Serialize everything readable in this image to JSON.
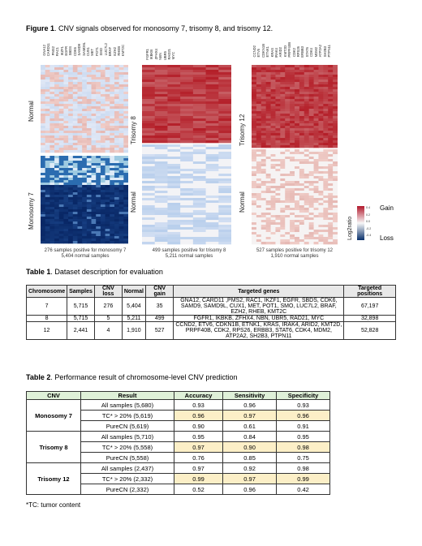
{
  "figure": {
    "label": "Figure 1",
    "title": ". CNV signals observed for monosomy 7, trisomy 8, and trisomy 12.",
    "panels": [
      {
        "genes": [
          "GNA12",
          "CARD11",
          "PMS2",
          "RAC1",
          "IKZF1",
          "EGFR",
          "SBDS",
          "CDK6",
          "SAMD9",
          "SAMD9L",
          "CUX1",
          "MET",
          "POT1",
          "SMO",
          "LUC7L2",
          "BRAF",
          "EZH2",
          "RHEB",
          "KMT2C"
        ],
        "top_label": "Normal",
        "bottom_label": "Monosomy 7",
        "note_line1": "276 samples positive for monosomy 7",
        "note_line2": "5,404 normal samples"
      },
      {
        "genes": [
          "FGFR1",
          "IKBKB",
          "ZFHX4",
          "NBN",
          "UBR5",
          "RAD21",
          "MYC"
        ],
        "top_label": "Trisomy 8",
        "bottom_label": "Normal",
        "note_line1": "499 samples positive for trisomy 8",
        "note_line2": "5,211 normal samples"
      },
      {
        "genes": [
          "CCND2",
          "ETV6",
          "CDKN1B",
          "ETNK1",
          "KRAS",
          "IRAK4",
          "ARID2",
          "KMT2D",
          "PRPF40B",
          "CDK2",
          "RPS26",
          "ERBB3",
          "STAT6",
          "CDK4",
          "MDM2",
          "ATP2A2",
          "SH2B3",
          "PTPN11"
        ],
        "top_label": "Trisomy 12",
        "bottom_label": "Normal",
        "note_line1": "527 samples positive for trisomy 12",
        "note_line2": "1,910 normal samples"
      }
    ],
    "legend": {
      "title": "Log2ratio",
      "gain": "Gain",
      "loss": "Loss",
      "ticks": [
        "0.4",
        "0.2",
        "0.0",
        "-0.2",
        "-0.4"
      ],
      "colors": {
        "gain": "#b2182b",
        "neutral": "#f7f7f7",
        "loss": "#08306b"
      }
    }
  },
  "table1": {
    "label": "Table 1",
    "title": ". Dataset description for evaluation",
    "headers": [
      "Chromosome",
      "Samples",
      "CNV loss",
      "Normal",
      "CNV gain",
      "Targeted genes",
      "Targeted positions"
    ],
    "rows": [
      [
        "7",
        "5,715",
        "276",
        "5,404",
        "35",
        "GNA12, CARD11 ,PMS2, RAC1, IKZF1, EGFR, SBDS, CDK6, SAMD9, SAMD9L, CUX1, MET, POT1, SMO, LUC7L2, BRAF, EZH2, RHEB, KMT2C",
        "67,197"
      ],
      [
        "8",
        "5,715",
        "5",
        "5,211",
        "499",
        "FGFR1, IKBKB, ZFHX4, NBN, UBR5, RAD21, MYC",
        "32,898"
      ],
      [
        "12",
        "2,441",
        "4",
        "1,910",
        "527",
        "CCND2, ETV6, CDKN1B, ETNK1, KRAS, IRAK4, ARID2, KMT2D, PRPF40B, CDK2, RPS26, ERBB3, STAT6, CDK4, MDM2, ATP2A2, SH2B3, PTPN11",
        "52,828"
      ]
    ]
  },
  "table2": {
    "label": "Table 2",
    "title": ". Performance result of chromosome-level CNV prediction",
    "headers": [
      "CNV",
      "Result",
      "Accuracy",
      "Sensitivity",
      "Specificity"
    ],
    "groups": [
      {
        "cnv": "Monosomy 7",
        "rows": [
          [
            "All samples (5,680)",
            "0.93",
            "0.96",
            "0.93"
          ],
          [
            "TC* > 20% (5,619)",
            "0.96",
            "0.97",
            "0.96"
          ],
          [
            "PureCN (5,619)",
            "0.90",
            "0.61",
            "0.91"
          ]
        ]
      },
      {
        "cnv": "Trisomy 8",
        "rows": [
          [
            "All samples (5,710)",
            "0.95",
            "0.84",
            "0.95"
          ],
          [
            "TC* > 20% (5,558)",
            "0.97",
            "0.90",
            "0.98"
          ],
          [
            "PureCN (5,558)",
            "0.76",
            "0.85",
            "0.75"
          ]
        ]
      },
      {
        "cnv": "Trisomy 12",
        "rows": [
          [
            "All samples (2,437)",
            "0.97",
            "0.92",
            "0.98"
          ],
          [
            "TC* > 20% (2,332)",
            "0.99",
            "0.97",
            "0.99"
          ],
          [
            "PureCN (2,332)",
            "0.52",
            "0.96",
            "0.42"
          ]
        ]
      }
    ]
  },
  "footnote": "*TC: tumor content"
}
